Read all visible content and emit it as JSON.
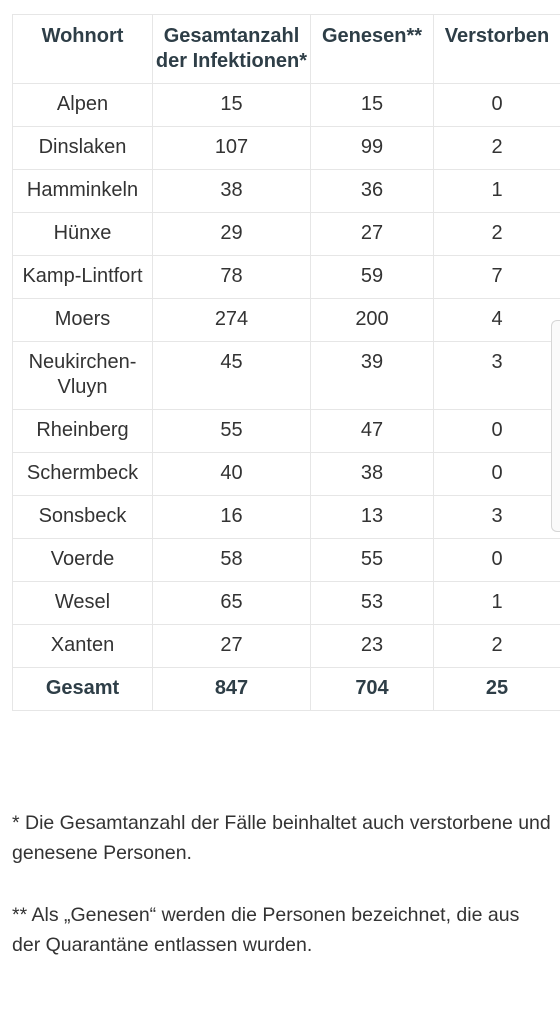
{
  "table": {
    "headers": [
      "Wohnort",
      "Gesamtanzahl der Infektionen*",
      "Genesen**",
      "Verstorben"
    ],
    "rows": [
      [
        "Alpen",
        "15",
        "15",
        "0"
      ],
      [
        "Dinslaken",
        "107",
        "99",
        "2"
      ],
      [
        "Hamminkeln",
        "38",
        "36",
        "1"
      ],
      [
        "Hünxe",
        "29",
        "27",
        "2"
      ],
      [
        "Kamp-Lintfort",
        "78",
        "59",
        "7"
      ],
      [
        "Moers",
        "274",
        "200",
        "4"
      ],
      [
        "Neukirchen-Vluyn",
        "45",
        "39",
        "3"
      ],
      [
        "Rheinberg",
        "55",
        "47",
        "0"
      ],
      [
        "Schermbeck",
        "40",
        "38",
        "0"
      ],
      [
        "Sonsbeck",
        "16",
        "13",
        "3"
      ],
      [
        "Voerde",
        "58",
        "55",
        "0"
      ],
      [
        "Wesel",
        "65",
        "53",
        "1"
      ],
      [
        "Xanten",
        "27",
        "23",
        "2"
      ]
    ],
    "total": [
      "Gesamt",
      "847",
      "704",
      "25"
    ]
  },
  "notes": [
    "* Die Gesamtanzahl der Fälle beinhaltet auch verstorbene und genesene Personen.",
    "** Als „Genesen“ werden die Personen bezeichnet, die aus der Quarantäne entlassen wurden."
  ]
}
